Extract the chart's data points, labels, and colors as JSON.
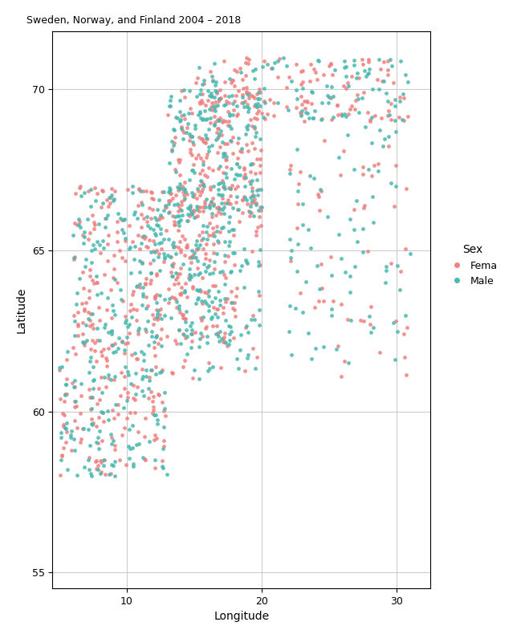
{
  "title": "Sweden, Norway, and Finland 2004 – 2018",
  "xlabel": "Longitude",
  "ylabel": "Latitude",
  "xlim": [
    4.5,
    32.5
  ],
  "ylim": [
    54.5,
    71.8
  ],
  "xticks": [
    10,
    20,
    30
  ],
  "yticks": [
    55,
    60,
    65,
    70
  ],
  "female_color": "#F08080",
  "male_color": "#48B8B0",
  "bg_color": "#FFFFFF",
  "grid_color": "#CCCCCC",
  "map_linewidth": 0.5,
  "point_size": 12,
  "point_alpha": 0.85,
  "legend_title": "Sex",
  "legend_female": "Fema",
  "legend_male": "Male",
  "title_fontsize": 9,
  "axis_label_fontsize": 10,
  "tick_fontsize": 9,
  "legend_fontsize": 9,
  "legend_title_fontsize": 10,
  "figsize": [
    6.54,
    7.8
  ],
  "dpi": 100
}
